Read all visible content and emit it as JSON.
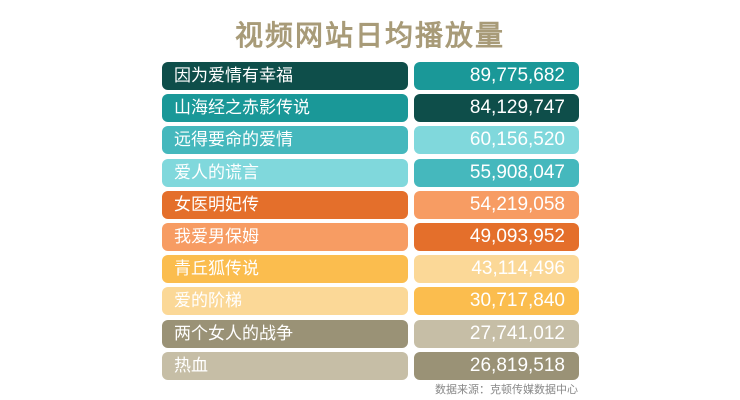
{
  "title": "视频网站日均播放量",
  "source": "数据来源：克顿传媒数据中心",
  "colors": {
    "title": "#a89b78",
    "rows": [
      {
        "name": "#0e4e4a",
        "value": "#1a9898"
      },
      {
        "name": "#1a9898",
        "value": "#0e4e4a"
      },
      {
        "name": "#45b8bd",
        "value": "#80d8dc"
      },
      {
        "name": "#80d8dc",
        "value": "#45b8bd"
      },
      {
        "name": "#e46f2b",
        "value": "#f79c63"
      },
      {
        "name": "#f79c63",
        "value": "#e46f2b"
      },
      {
        "name": "#fbbd4e",
        "value": "#fbd897"
      },
      {
        "name": "#fbd897",
        "value": "#fbbd4e"
      },
      {
        "name": "#9a9276",
        "value": "#c6bea6"
      },
      {
        "name": "#c6bea6",
        "value": "#9a9276"
      }
    ]
  },
  "chart_data": {
    "type": "table",
    "title": "视频网站日均播放量",
    "categories": [
      "因为爱情有幸福",
      "山海经之赤影传说",
      "远得要命的爱情",
      "爱人的谎言",
      "女医明妃传",
      "我爱男保姆",
      "青丘狐传说",
      "爱的阶梯",
      "两个女人的战争",
      "热血"
    ],
    "values": [
      89775682,
      84129747,
      60156520,
      55908047,
      54219058,
      49093952,
      43114496,
      30717840,
      27741012,
      26819518
    ],
    "value_labels": [
      "89,775,682",
      "84,129,747",
      "60,156,520",
      "55,908,047",
      "54,219,058",
      "49,093,952",
      "43,114,496",
      "30,717,840",
      "27,741,012",
      "26,819,518"
    ]
  }
}
